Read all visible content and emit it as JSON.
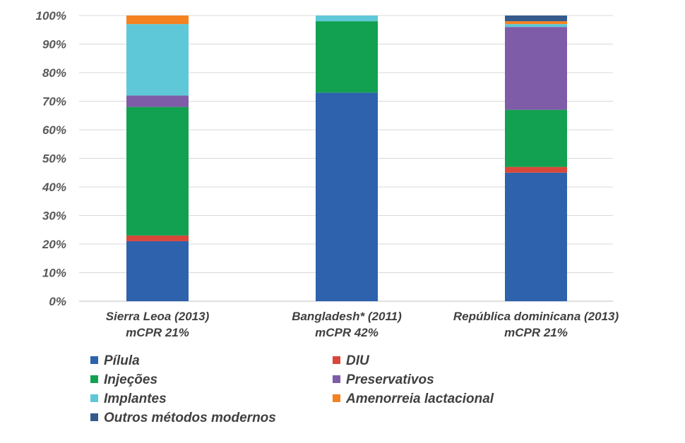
{
  "chart_data": {
    "type": "stacked-bar",
    "title": "",
    "xlabel": "",
    "ylabel": "",
    "ylim": [
      0,
      100
    ],
    "yticks": [
      "0%",
      "10%",
      "20%",
      "30%",
      "40%",
      "50%",
      "60%",
      "70%",
      "80%",
      "90%",
      "100%"
    ],
    "grid": true,
    "legend_position": "bottom",
    "categories": [
      {
        "line1": "Sierra Leoa (2013)",
        "line2": "mCPR 21%"
      },
      {
        "line1": "Bangladesh* (2011)",
        "line2": "mCPR 42%"
      },
      {
        "line1": "República dominicana (2013)",
        "line2": "mCPR 21%"
      }
    ],
    "series": [
      {
        "name": "Pílula",
        "color": "#2e62ad",
        "values": [
          21,
          73,
          45
        ]
      },
      {
        "name": "DIU",
        "color": "#d9473a",
        "values": [
          2,
          0,
          2
        ]
      },
      {
        "name": "Injeções",
        "color": "#12a150",
        "values": [
          45,
          25,
          20
        ]
      },
      {
        "name": "Preservativos",
        "color": "#7f5ca8",
        "values": [
          4,
          0,
          29
        ]
      },
      {
        "name": "Implantes",
        "color": "#5ec8d8",
        "values": [
          25,
          2,
          1
        ]
      },
      {
        "name": "Amenorreia lactacional",
        "color": "#f58220",
        "values": [
          3,
          0,
          1
        ]
      },
      {
        "name": "Outros métodos modernos",
        "color": "#355b8c",
        "values": [
          0,
          0,
          2
        ]
      }
    ]
  }
}
